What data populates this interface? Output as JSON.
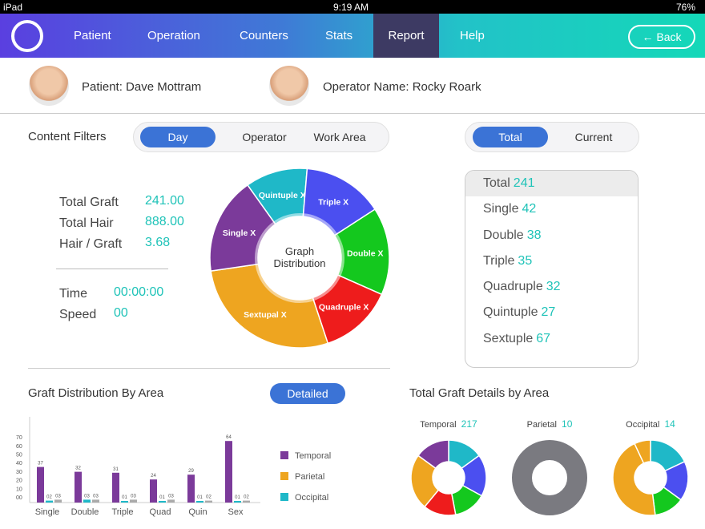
{
  "status": {
    "device": "iPad",
    "time": "9:19 AM",
    "battery": "76%"
  },
  "nav": {
    "items": [
      "Patient",
      "Operation",
      "Counters",
      "Stats",
      "Report",
      "Help"
    ],
    "active": "Report",
    "back_label": "← Back"
  },
  "people": {
    "patient": "Patient: Dave Mottram",
    "operator": "Operator Name: Rocky Roark"
  },
  "filters": {
    "label": "Content Filters",
    "options": [
      "Day",
      "Operator",
      "Work Area"
    ],
    "selected": "Day"
  },
  "toggle": {
    "options": [
      "Total",
      "Current"
    ],
    "selected": "Total"
  },
  "stats": [
    {
      "label": "Total Graft",
      "value": "241.00"
    },
    {
      "label": "Total Hair",
      "value": "888.00"
    },
    {
      "label": "Hair / Graft",
      "value": "3.68"
    },
    {
      "label": "Time",
      "value": "00:00:00"
    },
    {
      "label": "Speed",
      "value": "00"
    }
  ],
  "donut": {
    "center_label": "Graph Distribution",
    "slices": [
      {
        "label": "Quintuple X",
        "value": 27,
        "color": "#1fb8c8"
      },
      {
        "label": "Triple X",
        "value": 35,
        "color": "#4b4ff0"
      },
      {
        "label": "Double X",
        "value": 38,
        "color": "#14c81e"
      },
      {
        "label": "Quadruple X",
        "value": 32,
        "color": "#ee1c1c"
      },
      {
        "label": "Sextupal X",
        "value": 67,
        "color": "#eea520"
      },
      {
        "label": "Single X",
        "value": 42,
        "color": "#7b3a9a"
      }
    ]
  },
  "totals": [
    {
      "label": "Total",
      "value": "241"
    },
    {
      "label": "Single",
      "value": "42"
    },
    {
      "label": "Double",
      "value": "38"
    },
    {
      "label": "Triple",
      "value": "35"
    },
    {
      "label": "Quadruple",
      "value": "32"
    },
    {
      "label": "Quintuple",
      "value": "27"
    },
    {
      "label": "Sextuple",
      "value": "67"
    }
  ],
  "graft_area": {
    "title": "Graft Distribution By Area",
    "button": "Detailed"
  },
  "chart_data": {
    "type": "bar",
    "categories": [
      "Single",
      "Double",
      "Triple",
      "Quad",
      "Quin",
      "Sex"
    ],
    "yticks": [
      "00",
      "10",
      "20",
      "30",
      "40",
      "50",
      "60",
      "70"
    ],
    "ylim": [
      0,
      75
    ],
    "series": [
      {
        "name": "Temporal",
        "values": [
          37,
          32,
          31,
          24,
          29,
          64
        ],
        "labels": [
          "37",
          "32",
          "31",
          "24",
          "29",
          "64"
        ],
        "color": "#7b3a9a"
      },
      {
        "name": "Parietal",
        "values": [
          2,
          3,
          1,
          1,
          1,
          1
        ],
        "labels": [
          "02",
          "03",
          "01",
          "01",
          "01",
          "01"
        ],
        "color": "#1fb8c8"
      },
      {
        "name": "Occipital",
        "values": [
          3,
          3,
          3,
          3,
          2,
          2
        ],
        "labels": [
          "03",
          "03",
          "03",
          "03",
          "02",
          "02"
        ],
        "color": "#aaaaaa"
      }
    ],
    "legend": [
      {
        "name": "Temporal",
        "color": "#7b3a9a"
      },
      {
        "name": "Parietal",
        "color": "#eea520"
      },
      {
        "name": "Occipital",
        "color": "#1fb8c8"
      }
    ]
  },
  "area_details": {
    "title": "Total Graft Details by Area",
    "areas": [
      {
        "label": "Temporal",
        "value": "217",
        "slices": [
          {
            "v": 15,
            "c": "#1fb8c8"
          },
          {
            "v": 18,
            "c": "#4b4ff0"
          },
          {
            "v": 14,
            "c": "#14c81e"
          },
          {
            "v": 14,
            "c": "#ee1c1c"
          },
          {
            "v": 24,
            "c": "#eea520"
          },
          {
            "v": 15,
            "c": "#7b3a9a"
          }
        ]
      },
      {
        "label": "Parietal",
        "value": "10",
        "slices": [
          {
            "v": 100,
            "c": "#7a7a80"
          }
        ]
      },
      {
        "label": "Occipital",
        "value": "14",
        "slices": [
          {
            "v": 18,
            "c": "#1fb8c8"
          },
          {
            "v": 17,
            "c": "#4b4ff0"
          },
          {
            "v": 13,
            "c": "#14c81e"
          },
          {
            "v": 45,
            "c": "#eea520"
          },
          {
            "v": 7,
            "c": "#eea520"
          }
        ]
      }
    ]
  }
}
